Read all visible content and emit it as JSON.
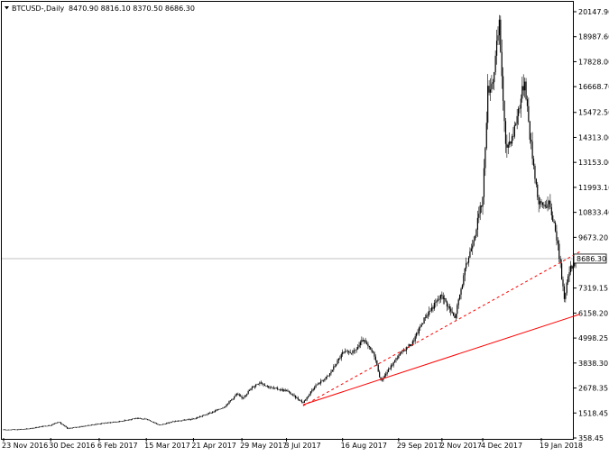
{
  "header": {
    "symbol_label": "BTCUSD-,Daily",
    "ohlc": "8470.90 8816.10 8370.50 8686.30"
  },
  "colors": {
    "candles": "#000000",
    "trendline": "#ff0000",
    "price_line": "#c0c0c0",
    "current_price_bg": "#ffffff"
  },
  "chart_data": {
    "type": "candlestick",
    "title": "",
    "xlabel": "",
    "ylabel": "",
    "ylim": [
      358.45,
      20147.9
    ],
    "y_ticks": [
      "20147.90",
      "18987.60",
      "17828.00",
      "16668.70",
      "15472.50",
      "14313.00",
      "13153.00",
      "11993.10",
      "10833.40",
      "9673.20",
      "7319.15",
      "6158.20",
      "4998.25",
      "3838.30",
      "2678.35",
      "1518.45",
      "358.45"
    ],
    "x_ticks": [
      "23 Nov 2016",
      "30 Dec 2016",
      "6 Feb 2017",
      "15 Mar 2017",
      "21 Apr 2017",
      "29 May 2017",
      "3 Jul 2017",
      "16 Aug 2017",
      "29 Sep 2017",
      "2 Nov 2017",
      "4 Dec 2017",
      "19 Jan 2018"
    ],
    "current_price": "8686.30",
    "series_points": [
      {
        "date": "2016-11-23",
        "close": 740
      },
      {
        "date": "2016-12-10",
        "close": 770
      },
      {
        "date": "2016-12-20",
        "close": 860
      },
      {
        "date": "2016-12-30",
        "close": 960
      },
      {
        "date": "2017-01-05",
        "close": 1110
      },
      {
        "date": "2017-01-12",
        "close": 800
      },
      {
        "date": "2017-01-25",
        "close": 910
      },
      {
        "date": "2017-02-06",
        "close": 1020
      },
      {
        "date": "2017-02-22",
        "close": 1130
      },
      {
        "date": "2017-03-05",
        "close": 1260
      },
      {
        "date": "2017-03-15",
        "close": 1240
      },
      {
        "date": "2017-03-25",
        "close": 960
      },
      {
        "date": "2017-04-05",
        "close": 1120
      },
      {
        "date": "2017-04-21",
        "close": 1240
      },
      {
        "date": "2017-05-05",
        "close": 1540
      },
      {
        "date": "2017-05-15",
        "close": 1800
      },
      {
        "date": "2017-05-25",
        "close": 2400
      },
      {
        "date": "2017-05-29",
        "close": 2200
      },
      {
        "date": "2017-06-06",
        "close": 2700
      },
      {
        "date": "2017-06-12",
        "close": 2960
      },
      {
        "date": "2017-06-20",
        "close": 2700
      },
      {
        "date": "2017-07-03",
        "close": 2550
      },
      {
        "date": "2017-07-16",
        "close": 2000
      },
      {
        "date": "2017-07-25",
        "close": 2750
      },
      {
        "date": "2017-08-05",
        "close": 3250
      },
      {
        "date": "2017-08-16",
        "close": 4300
      },
      {
        "date": "2017-08-25",
        "close": 4350
      },
      {
        "date": "2017-09-01",
        "close": 4900
      },
      {
        "date": "2017-09-10",
        "close": 4200
      },
      {
        "date": "2017-09-15",
        "close": 3000
      },
      {
        "date": "2017-09-29",
        "close": 4200
      },
      {
        "date": "2017-10-10",
        "close": 4800
      },
      {
        "date": "2017-10-20",
        "close": 6000
      },
      {
        "date": "2017-11-02",
        "close": 7000
      },
      {
        "date": "2017-11-12",
        "close": 5900
      },
      {
        "date": "2017-11-20",
        "close": 8100
      },
      {
        "date": "2017-11-28",
        "close": 9900
      },
      {
        "date": "2017-12-04",
        "close": 11500
      },
      {
        "date": "2017-12-08",
        "close": 16500
      },
      {
        "date": "2017-12-12",
        "close": 17000
      },
      {
        "date": "2017-12-17",
        "close": 19500
      },
      {
        "date": "2017-12-22",
        "close": 13800
      },
      {
        "date": "2017-12-28",
        "close": 14500
      },
      {
        "date": "2018-01-06",
        "close": 17000
      },
      {
        "date": "2018-01-10",
        "close": 14400
      },
      {
        "date": "2018-01-17",
        "close": 11200
      },
      {
        "date": "2018-01-25",
        "close": 11200
      },
      {
        "date": "2018-01-30",
        "close": 10100
      },
      {
        "date": "2018-02-02",
        "close": 8800
      },
      {
        "date": "2018-02-06",
        "close": 6900
      },
      {
        "date": "2018-02-10",
        "close": 8100
      },
      {
        "date": "2018-02-15",
        "close": 8686
      }
    ],
    "trendlines": [
      {
        "style": "solid",
        "from": {
          "date": "2017-07-16",
          "price": 1900
        },
        "to": {
          "date": "2018-02-18",
          "price": 6100
        }
      },
      {
        "style": "dashed",
        "from": {
          "date": "2017-07-16",
          "price": 1850
        },
        "to": {
          "date": "2018-02-18",
          "price": 9000
        }
      }
    ]
  }
}
